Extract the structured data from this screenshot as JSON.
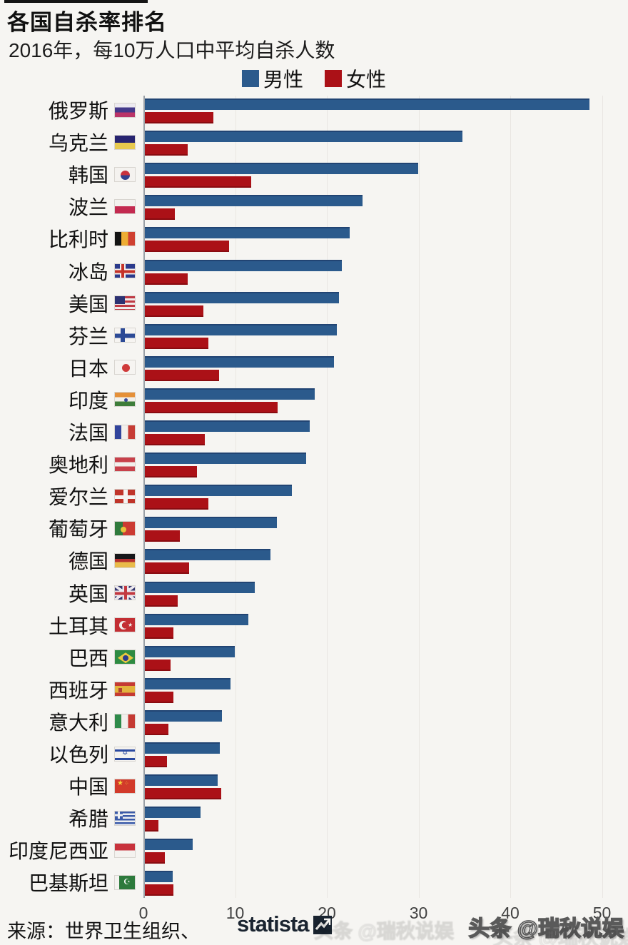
{
  "title": "各国自杀率排名",
  "subtitle": "2016年，每10万人口中平均自杀人数",
  "source": {
    "label": "来源：世界卫生组织、",
    "brand": "statista"
  },
  "watermark": {
    "text": "头条 @瑞秋说娱"
  },
  "colors": {
    "male": "#2b5a8c",
    "female": "#ab1117",
    "background": "#f6f5f2",
    "axis": "#9aa0a6",
    "grid": "#e9e6e2"
  },
  "chart_data": {
    "type": "bar",
    "orientation": "horizontal",
    "title": "各国自杀率排名",
    "subtitle": "2016年，每10万人口中平均自杀人数",
    "unit": "每10万人口自杀人数",
    "xlim": [
      0,
      50
    ],
    "xticks": [
      0,
      10,
      20,
      30,
      40,
      50
    ],
    "grid": true,
    "legend_position": "top",
    "categories": [
      "俄罗斯",
      "乌克兰",
      "韩国",
      "波兰",
      "比利时",
      "冰岛",
      "美国",
      "芬兰",
      "日本",
      "印度",
      "法国",
      "奥地利",
      "爱尔兰",
      "葡萄牙",
      "德国",
      "英国",
      "土耳其",
      "巴西",
      "西班牙",
      "意大利",
      "以色列",
      "中国",
      "希腊",
      "印度尼西亚",
      "巴基斯坦"
    ],
    "flags": [
      "russia",
      "ukraine",
      "south-korea",
      "poland",
      "belgium",
      "iceland",
      "usa",
      "finland",
      "japan",
      "india",
      "france",
      "austria",
      "ireland",
      "portugal",
      "germany",
      "uk",
      "turkey",
      "brazil",
      "spain",
      "italy",
      "israel",
      "china",
      "greece",
      "indonesia",
      "pakistan"
    ],
    "series": [
      {
        "name": "男性",
        "color": "#2b5a8c",
        "values": [
          48.5,
          34.6,
          29.8,
          23.7,
          22.3,
          21.5,
          21.2,
          20.9,
          20.6,
          18.5,
          18.0,
          17.6,
          16.0,
          14.4,
          13.7,
          12.0,
          11.3,
          9.8,
          9.3,
          8.4,
          8.2,
          7.9,
          6.1,
          5.2,
          3.0
        ]
      },
      {
        "name": "女性",
        "color": "#ab1117",
        "values": [
          7.5,
          4.7,
          11.6,
          3.3,
          9.2,
          4.7,
          6.4,
          6.9,
          8.1,
          14.5,
          6.5,
          5.7,
          6.9,
          3.8,
          4.8,
          3.6,
          3.1,
          2.8,
          3.1,
          2.6,
          2.4,
          8.3,
          1.5,
          2.2,
          3.1
        ]
      }
    ]
  }
}
